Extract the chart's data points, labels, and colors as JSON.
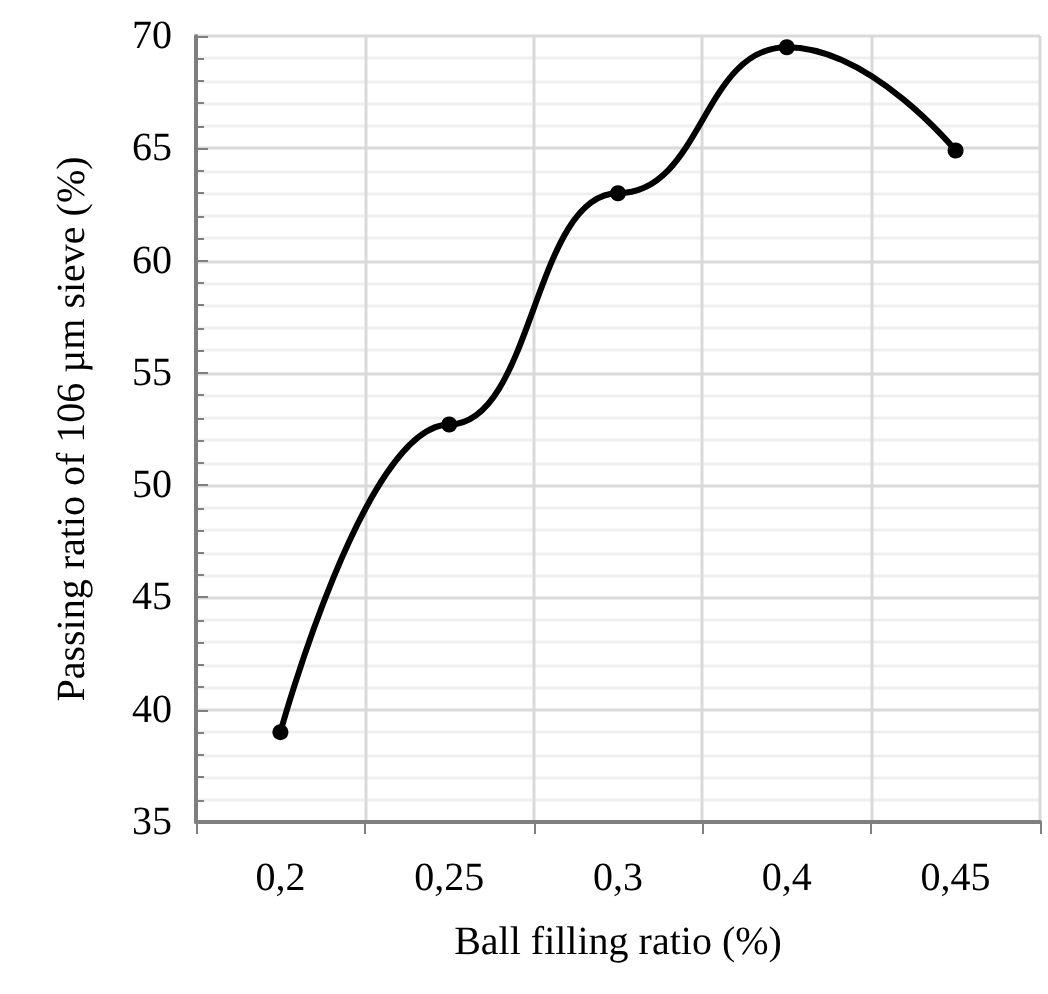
{
  "chart_data": {
    "type": "line",
    "xlabel": "Ball filling ratio (%)",
    "ylabel": "Passing ratio of 106 µm sieve (%)",
    "categories": [
      "0,2",
      "0,25",
      "0,3",
      "0,4",
      "0,45"
    ],
    "series": [
      {
        "color": "#000000",
        "values": [
          39,
          52.7,
          63,
          69.5,
          64.9
        ]
      }
    ],
    "ylim": [
      35,
      70
    ],
    "yticks": [
      35,
      40,
      45,
      50,
      55,
      60,
      65,
      70
    ],
    "grid": true,
    "marker": "circle",
    "line_style": "solid"
  }
}
